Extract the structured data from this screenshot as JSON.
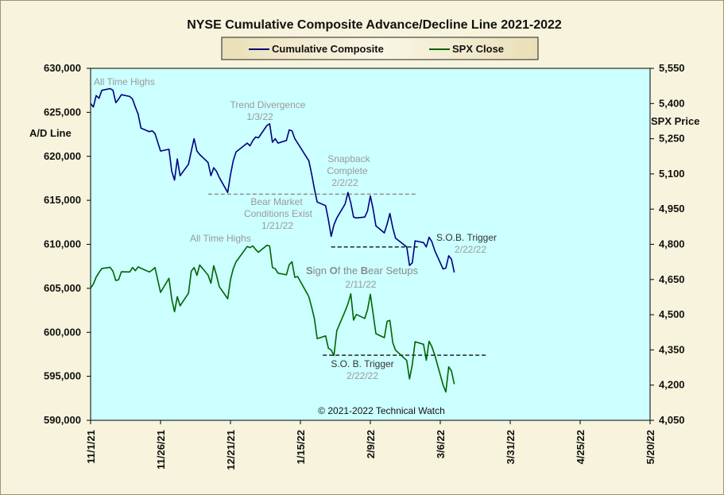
{
  "chart_data": {
    "type": "line",
    "title": "NYSE Cumulative  Composite Advance/Decline Line 2021-2022",
    "ylabel": "A/D Line",
    "y2label": "SPX Price",
    "ylim": [
      590000,
      630000
    ],
    "y2lim": [
      4050,
      5550
    ],
    "yticks": [
      "630,000",
      "625,000",
      "620,000",
      "615,000",
      "610,000",
      "605,000",
      "600,000",
      "595,000",
      "590,000"
    ],
    "y2ticks": [
      "5,550",
      "5,400",
      "5,250",
      "5,100",
      "4,950",
      "4,800",
      "4,650",
      "4,500",
      "4,350",
      "4,200",
      "4,050"
    ],
    "xticks": [
      "11/1/21",
      "11/26/21",
      "12/21/21",
      "1/15/22",
      "2/9/22",
      "3/6/22",
      "3/31/22",
      "4/25/22",
      "5/20/22"
    ],
    "grid": false,
    "legend": "top-center",
    "series": [
      {
        "name": "Cumulative Composite",
        "color": "#000080",
        "axis": "left",
        "points": [
          [
            "2021-11-01",
            626000
          ],
          [
            "2021-11-02",
            625600
          ],
          [
            "2021-11-03",
            626900
          ],
          [
            "2021-11-04",
            626600
          ],
          [
            "2021-11-05",
            627500
          ],
          [
            "2021-11-08",
            627700
          ],
          [
            "2021-11-09",
            627500
          ],
          [
            "2021-11-10",
            626100
          ],
          [
            "2021-11-11",
            626500
          ],
          [
            "2021-11-12",
            627000
          ],
          [
            "2021-11-15",
            626800
          ],
          [
            "2021-11-16",
            626500
          ],
          [
            "2021-11-17",
            625600
          ],
          [
            "2021-11-18",
            624800
          ],
          [
            "2021-11-19",
            623200
          ],
          [
            "2021-11-22",
            622800
          ],
          [
            "2021-11-23",
            622900
          ],
          [
            "2021-11-24",
            622600
          ],
          [
            "2021-11-26",
            620600
          ],
          [
            "2021-11-29",
            620800
          ],
          [
            "2021-11-30",
            618300
          ],
          [
            "2021-12-01",
            617300
          ],
          [
            "2021-12-02",
            619700
          ],
          [
            "2021-12-03",
            617800
          ],
          [
            "2021-12-06",
            619100
          ],
          [
            "2021-12-07",
            620600
          ],
          [
            "2021-12-08",
            622000
          ],
          [
            "2021-12-09",
            620600
          ],
          [
            "2021-12-10",
            620200
          ],
          [
            "2021-12-13",
            619300
          ],
          [
            "2021-12-14",
            617800
          ],
          [
            "2021-12-15",
            618700
          ],
          [
            "2021-12-16",
            618300
          ],
          [
            "2021-12-17",
            617600
          ],
          [
            "2021-12-20",
            615900
          ],
          [
            "2021-12-21",
            617900
          ],
          [
            "2021-12-22",
            619500
          ],
          [
            "2021-12-23",
            620500
          ],
          [
            "2021-12-27",
            621500
          ],
          [
            "2021-12-28",
            621200
          ],
          [
            "2021-12-29",
            621800
          ],
          [
            "2021-12-30",
            622200
          ],
          [
            "2021-12-31",
            622100
          ],
          [
            "2022-01-03",
            623500
          ],
          [
            "2022-01-04",
            623700
          ],
          [
            "2022-01-05",
            621600
          ],
          [
            "2022-01-06",
            622000
          ],
          [
            "2022-01-07",
            621500
          ],
          [
            "2022-01-10",
            621800
          ],
          [
            "2022-01-11",
            623000
          ],
          [
            "2022-01-12",
            622900
          ],
          [
            "2022-01-13",
            622000
          ],
          [
            "2022-01-14",
            621500
          ],
          [
            "2022-01-18",
            619500
          ],
          [
            "2022-01-19",
            618000
          ],
          [
            "2022-01-20",
            616300
          ],
          [
            "2022-01-21",
            614800
          ],
          [
            "2022-01-24",
            614400
          ],
          [
            "2022-01-25",
            612800
          ],
          [
            "2022-01-26",
            610900
          ],
          [
            "2022-01-27",
            612200
          ],
          [
            "2022-01-28",
            613000
          ],
          [
            "2022-01-31",
            614600
          ],
          [
            "2022-02-01",
            615900
          ],
          [
            "2022-02-02",
            614700
          ],
          [
            "2022-02-03",
            613100
          ],
          [
            "2022-02-04",
            613000
          ],
          [
            "2022-02-07",
            613100
          ],
          [
            "2022-02-08",
            613800
          ],
          [
            "2022-02-09",
            615500
          ],
          [
            "2022-02-10",
            614000
          ],
          [
            "2022-02-11",
            612100
          ],
          [
            "2022-02-14",
            611300
          ],
          [
            "2022-02-15",
            612300
          ],
          [
            "2022-02-16",
            613500
          ],
          [
            "2022-02-17",
            611900
          ],
          [
            "2022-02-18",
            610700
          ],
          [
            "2022-02-22",
            609700
          ],
          [
            "2022-02-23",
            607600
          ],
          [
            "2022-02-24",
            607900
          ],
          [
            "2022-02-25",
            610400
          ],
          [
            "2022-02-28",
            610200
          ],
          [
            "2022-03-01",
            609700
          ],
          [
            "2022-03-02",
            610800
          ],
          [
            "2022-03-03",
            610300
          ],
          [
            "2022-03-04",
            609300
          ],
          [
            "2022-03-07",
            607200
          ],
          [
            "2022-03-08",
            607300
          ],
          [
            "2022-03-09",
            608700
          ],
          [
            "2022-03-10",
            608300
          ],
          [
            "2022-03-11",
            606800
          ]
        ]
      },
      {
        "name": "SPX Close",
        "color": "#006400",
        "axis": "right",
        "points": [
          [
            "2021-11-01",
            4613
          ],
          [
            "2021-11-02",
            4631
          ],
          [
            "2021-11-03",
            4660
          ],
          [
            "2021-11-04",
            4680
          ],
          [
            "2021-11-05",
            4697
          ],
          [
            "2021-11-08",
            4702
          ],
          [
            "2021-11-09",
            4685
          ],
          [
            "2021-11-10",
            4646
          ],
          [
            "2021-11-11",
            4649
          ],
          [
            "2021-11-12",
            4683
          ],
          [
            "2021-11-15",
            4682
          ],
          [
            "2021-11-16",
            4701
          ],
          [
            "2021-11-17",
            4688
          ],
          [
            "2021-11-18",
            4704
          ],
          [
            "2021-11-19",
            4698
          ],
          [
            "2021-11-22",
            4682
          ],
          [
            "2021-11-23",
            4690
          ],
          [
            "2021-11-24",
            4701
          ],
          [
            "2021-11-26",
            4595
          ],
          [
            "2021-11-29",
            4655
          ],
          [
            "2021-11-30",
            4567
          ],
          [
            "2021-12-01",
            4513
          ],
          [
            "2021-12-02",
            4577
          ],
          [
            "2021-12-03",
            4538
          ],
          [
            "2021-12-06",
            4592
          ],
          [
            "2021-12-07",
            4686
          ],
          [
            "2021-12-08",
            4701
          ],
          [
            "2021-12-09",
            4668
          ],
          [
            "2021-12-10",
            4712
          ],
          [
            "2021-12-13",
            4669
          ],
          [
            "2021-12-14",
            4634
          ],
          [
            "2021-12-15",
            4709
          ],
          [
            "2021-12-16",
            4668
          ],
          [
            "2021-12-17",
            4620
          ],
          [
            "2021-12-20",
            4568
          ],
          [
            "2021-12-21",
            4649
          ],
          [
            "2021-12-22",
            4696
          ],
          [
            "2021-12-23",
            4725
          ],
          [
            "2021-12-27",
            4791
          ],
          [
            "2021-12-28",
            4786
          ],
          [
            "2021-12-29",
            4793
          ],
          [
            "2021-12-30",
            4778
          ],
          [
            "2021-12-31",
            4766
          ],
          [
            "2022-01-03",
            4796
          ],
          [
            "2022-01-04",
            4793
          ],
          [
            "2022-01-05",
            4701
          ],
          [
            "2022-01-06",
            4696
          ],
          [
            "2022-01-07",
            4677
          ],
          [
            "2022-01-10",
            4670
          ],
          [
            "2022-01-11",
            4713
          ],
          [
            "2022-01-12",
            4726
          ],
          [
            "2022-01-13",
            4659
          ],
          [
            "2022-01-14",
            4663
          ],
          [
            "2022-01-18",
            4577
          ],
          [
            "2022-01-19",
            4533
          ],
          [
            "2022-01-20",
            4483
          ],
          [
            "2022-01-21",
            4398
          ],
          [
            "2022-01-24",
            4410
          ],
          [
            "2022-01-25",
            4357
          ],
          [
            "2022-01-26",
            4350
          ],
          [
            "2022-01-27",
            4326
          ],
          [
            "2022-01-28",
            4432
          ],
          [
            "2022-01-31",
            4516
          ],
          [
            "2022-02-01",
            4546
          ],
          [
            "2022-02-02",
            4589
          ],
          [
            "2022-02-03",
            4477
          ],
          [
            "2022-02-04",
            4501
          ],
          [
            "2022-02-07",
            4484
          ],
          [
            "2022-02-08",
            4522
          ],
          [
            "2022-02-09",
            4587
          ],
          [
            "2022-02-10",
            4504
          ],
          [
            "2022-02-11",
            4419
          ],
          [
            "2022-02-14",
            4402
          ],
          [
            "2022-02-15",
            4472
          ],
          [
            "2022-02-16",
            4476
          ],
          [
            "2022-02-17",
            4381
          ],
          [
            "2022-02-18",
            4349
          ],
          [
            "2022-02-22",
            4305
          ],
          [
            "2022-02-23",
            4226
          ],
          [
            "2022-02-24",
            4288
          ],
          [
            "2022-02-25",
            4385
          ],
          [
            "2022-02-28",
            4374
          ],
          [
            "2022-03-01",
            4306
          ],
          [
            "2022-03-02",
            4387
          ],
          [
            "2022-03-03",
            4364
          ],
          [
            "2022-03-04",
            4329
          ],
          [
            "2022-03-07",
            4201
          ],
          [
            "2022-03-08",
            4171
          ],
          [
            "2022-03-09",
            4278
          ],
          [
            "2022-03-10",
            4260
          ],
          [
            "2022-03-11",
            4204
          ]
        ]
      }
    ],
    "reference_lines": [
      {
        "axis": "left",
        "value": 615700,
        "from": "2021-12-13",
        "to": "2022-02-26",
        "color": "#909090"
      },
      {
        "axis": "left",
        "value": 609700,
        "from": "2022-01-26",
        "to": "2022-02-26",
        "color": "#333333"
      },
      {
        "axis": "left",
        "value": 597400,
        "from": "2022-01-23",
        "to": "2022-03-23",
        "color": "#333333"
      }
    ],
    "annotations": {
      "all_time_highs_1": "All Time Highs",
      "trend_divergence": "Trend  Divergence",
      "trend_divergence_date": "1/3/22",
      "snapback": "Snapback",
      "snapback_2": "Complete",
      "snapback_date": "2/2/22",
      "bear_market": "Bear Market",
      "bear_market_2": "Conditions  Exist",
      "bear_market_date": "1/21/22",
      "sob_trigger_1": "S.O.B. Trigger",
      "sob_trigger_1_date": "2/22/22",
      "all_time_highs_2": "All Time  Highs",
      "sob_setups_s": "S",
      "sob_setups_1": "ign ",
      "sob_setups_o": "O",
      "sob_setups_2": "f the ",
      "sob_setups_b": "B",
      "sob_setups_3": "ear Setups",
      "sob_setups_date": "2/11/22",
      "sob_trigger_2": "S.O. B. Trigger",
      "sob_trigger_2_date": "2/22/22",
      "copyright": "© 2021-2022  Technical Watch"
    },
    "colors": {
      "plot_bg": "#ccffff",
      "page_bg": "#f7f3dc"
    }
  }
}
